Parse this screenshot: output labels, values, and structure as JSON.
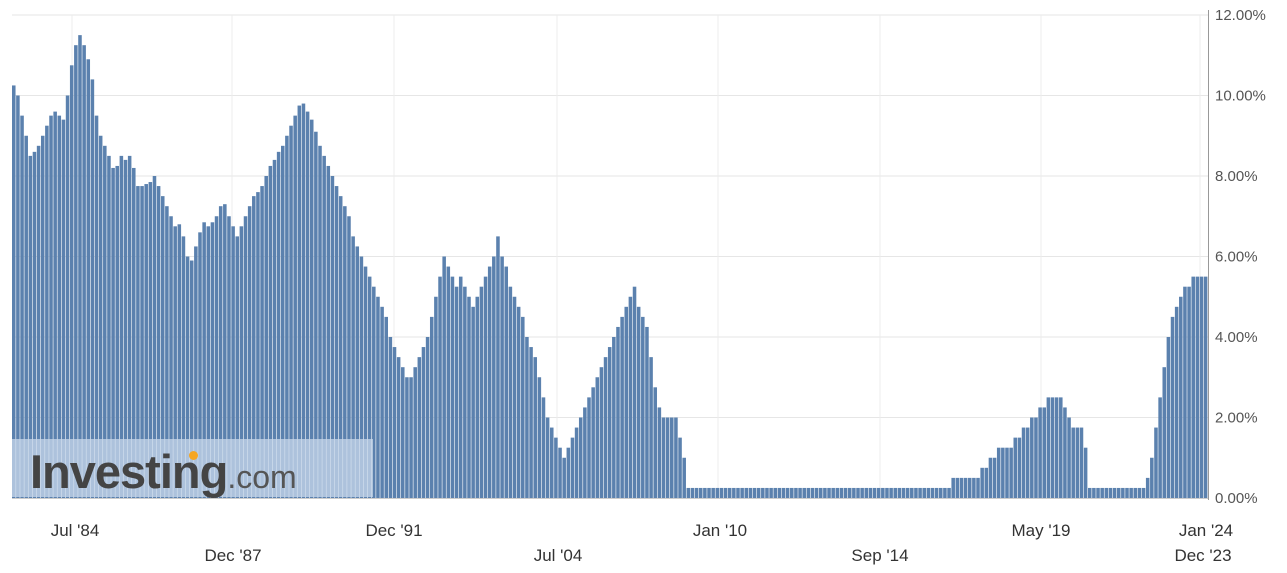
{
  "chart_data": {
    "type": "bar",
    "title": "",
    "xlabel": "",
    "ylabel": "",
    "ylim": [
      0,
      12
    ],
    "y_ticks": [
      "0.00%",
      "2.00%",
      "4.00%",
      "6.00%",
      "8.00%",
      "10.00%",
      "12.00%"
    ],
    "x_ticks_upper": [
      "Jul '84",
      "Dec '91",
      "Jan '10",
      "May '19",
      "Jan '24"
    ],
    "x_ticks_lower": [
      "Dec '87",
      "Jul '04",
      "Sep '14",
      "Dec '23"
    ],
    "grid": true,
    "y_axis_position": "right",
    "bar_color": "#5b81ae",
    "series": [
      {
        "values": [
          10.25,
          10.0,
          9.5,
          9.0,
          8.5,
          8.6,
          8.75,
          9.0,
          9.25,
          9.5,
          9.6,
          9.5,
          9.4,
          10.0,
          10.75,
          11.25,
          11.5,
          11.25,
          10.9,
          10.4,
          9.5,
          9.0,
          8.75,
          8.5,
          8.2,
          8.25,
          8.5,
          8.4,
          8.5,
          8.2,
          7.75,
          7.75,
          7.8,
          7.85,
          8.0,
          7.75,
          7.5,
          7.25,
          7.0,
          6.75,
          6.8,
          6.5,
          6.0,
          5.9,
          6.25,
          6.6,
          6.85,
          6.75,
          6.85,
          7.0,
          7.25,
          7.3,
          7.0,
          6.75,
          6.5,
          6.75,
          7.0,
          7.25,
          7.5,
          7.6,
          7.75,
          8.0,
          8.25,
          8.4,
          8.6,
          8.75,
          9.0,
          9.25,
          9.5,
          9.75,
          9.8,
          9.6,
          9.4,
          9.1,
          8.75,
          8.5,
          8.25,
          8.0,
          7.75,
          7.5,
          7.25,
          7.0,
          6.5,
          6.25,
          6.0,
          5.75,
          5.5,
          5.25,
          5.0,
          4.75,
          4.5,
          4.0,
          3.75,
          3.5,
          3.25,
          3.0,
          3.0,
          3.25,
          3.5,
          3.75,
          4.0,
          4.5,
          5.0,
          5.5,
          6.0,
          5.75,
          5.5,
          5.25,
          5.5,
          5.25,
          5.0,
          4.75,
          5.0,
          5.25,
          5.5,
          5.75,
          6.0,
          6.5,
          6.0,
          5.75,
          5.25,
          5.0,
          4.75,
          4.5,
          4.0,
          3.75,
          3.5,
          3.0,
          2.5,
          2.0,
          1.75,
          1.5,
          1.25,
          1.0,
          1.25,
          1.5,
          1.75,
          2.0,
          2.25,
          2.5,
          2.75,
          3.0,
          3.25,
          3.5,
          3.75,
          4.0,
          4.25,
          4.5,
          4.75,
          5.0,
          5.25,
          4.75,
          4.5,
          4.25,
          3.5,
          2.75,
          2.25,
          2.0,
          2.0,
          2.0,
          2.0,
          1.5,
          1.0,
          0.25,
          0.25,
          0.25,
          0.25,
          0.25,
          0.25,
          0.25,
          0.25,
          0.25,
          0.25,
          0.25,
          0.25,
          0.25,
          0.25,
          0.25,
          0.25,
          0.25,
          0.25,
          0.25,
          0.25,
          0.25,
          0.25,
          0.25,
          0.25,
          0.25,
          0.25,
          0.25,
          0.25,
          0.25,
          0.25,
          0.25,
          0.25,
          0.25,
          0.25,
          0.25,
          0.25,
          0.25,
          0.25,
          0.25,
          0.25,
          0.25,
          0.25,
          0.25,
          0.25,
          0.25,
          0.25,
          0.25,
          0.25,
          0.25,
          0.25,
          0.25,
          0.25,
          0.25,
          0.25,
          0.25,
          0.25,
          0.25,
          0.25,
          0.25,
          0.25,
          0.25,
          0.25,
          0.25,
          0.25,
          0.5,
          0.5,
          0.5,
          0.5,
          0.5,
          0.5,
          0.5,
          0.75,
          0.75,
          1.0,
          1.0,
          1.25,
          1.25,
          1.25,
          1.25,
          1.5,
          1.5,
          1.75,
          1.75,
          2.0,
          2.0,
          2.25,
          2.25,
          2.5,
          2.5,
          2.5,
          2.5,
          2.25,
          2.0,
          1.75,
          1.75,
          1.75,
          1.25,
          0.25,
          0.25,
          0.25,
          0.25,
          0.25,
          0.25,
          0.25,
          0.25,
          0.25,
          0.25,
          0.25,
          0.25,
          0.25,
          0.25,
          0.5,
          1.0,
          1.75,
          2.5,
          3.25,
          4.0,
          4.5,
          4.75,
          5.0,
          5.25,
          5.25,
          5.5,
          5.5,
          5.5,
          5.5
        ]
      }
    ]
  },
  "watermark": {
    "brand": "Investing",
    "suffix": ".com"
  }
}
